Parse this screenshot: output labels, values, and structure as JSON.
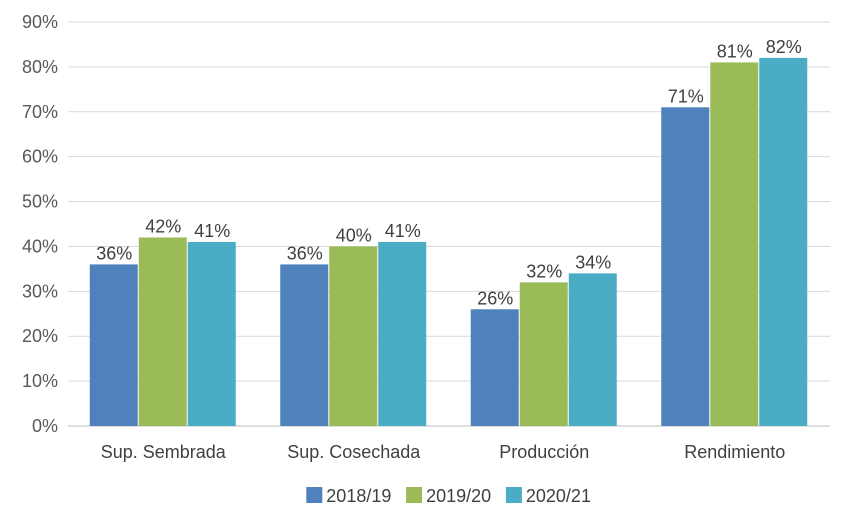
{
  "chart_data": {
    "type": "bar",
    "title": "",
    "xlabel": "",
    "ylabel": "",
    "categories": [
      "Sup. Sembrada",
      "Sup. Cosechada",
      "Producción",
      "Rendimiento"
    ],
    "series": [
      {
        "name": "2018/19",
        "color": "#4F81BD",
        "values": [
          36,
          36,
          26,
          71
        ]
      },
      {
        "name": "2019/20",
        "color": "#9BBB59",
        "values": [
          42,
          40,
          32,
          81
        ]
      },
      {
        "name": "2020/21",
        "color": "#4BACC6",
        "values": [
          41,
          41,
          34,
          82
        ]
      }
    ],
    "ylim": [
      0,
      90
    ],
    "yticks": [
      0,
      10,
      20,
      30,
      40,
      50,
      60,
      70,
      80,
      90
    ],
    "value_suffix": "%",
    "grid": true,
    "legend_position": "bottom"
  }
}
